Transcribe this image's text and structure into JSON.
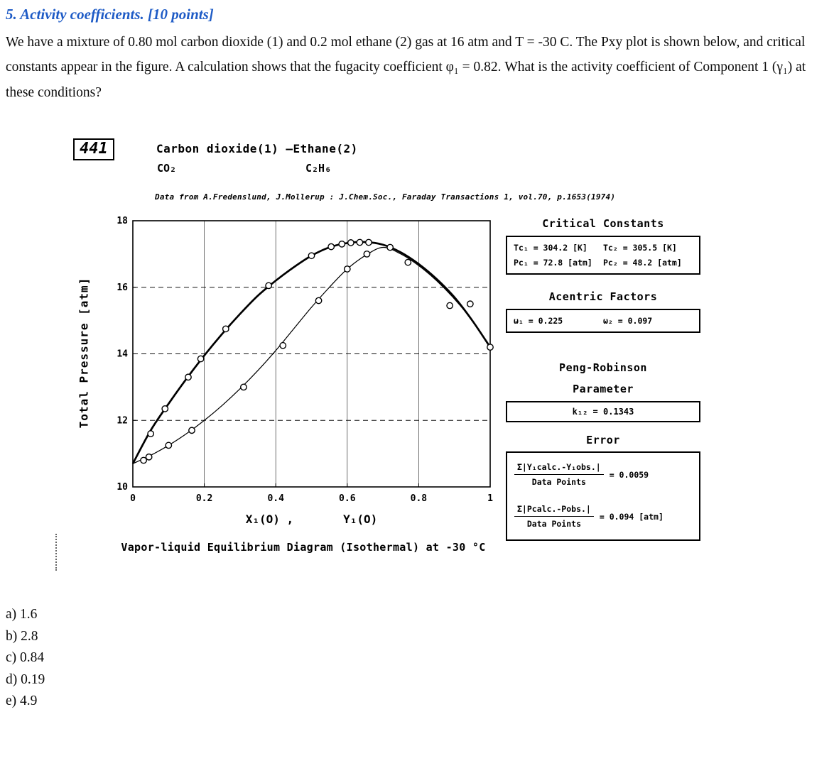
{
  "page": {
    "title": "5. Activity coefficients.  [10 points]",
    "body": "We have a mixture of 0.80 mol carbon dioxide (1) and 0.2 mol ethane (2) gas at 16 atm and T = -30 C.  The Pxy plot is shown below, and critical constants appear in the figure.  A calculation shows that the fugacity coefficient φ₁ = 0.82.  What is the activity coefficient of Component 1 (γ₁) at these conditions?",
    "answers": [
      "a) 1.6",
      "b) 2.8",
      "c) 0.84",
      "d) 0.19",
      "e) 4.9"
    ]
  },
  "figure": {
    "ref_number": "441",
    "title": "Carbon dioxide(1) —Ethane(2)",
    "component1_formula": "CO₂",
    "component2_formula": "C₂H₆",
    "source": "Data from A.Fredenslund, J.Mollerup : J.Chem.Soc., Faraday Transactions 1, vol.70, p.1653(1974)",
    "xaxis_label_x": "X₁(O) ,",
    "xaxis_label_y": "Y₁(O)",
    "panels": {
      "critical_constants": {
        "title": "Critical Constants",
        "rows": [
          [
            "Tc₁ = 304.2 [K]",
            "Tc₂ = 305.5 [K]"
          ],
          [
            "Pc₁ = 72.8 [atm]",
            "Pc₂ = 48.2 [atm]"
          ]
        ]
      },
      "acentric": {
        "title": "Acentric Factors",
        "row": [
          "ω₁ = 0.225",
          "ω₂ = 0.097"
        ]
      },
      "peng_robinson": {
        "title_line1": "Peng-Robinson",
        "title_line2": "Parameter",
        "value": "k₁₂ = 0.1343"
      },
      "error": {
        "title": "Error",
        "entries": [
          {
            "numerator": "Σ|Y₁calc.-Y₁obs.|",
            "denominator": "Data Points",
            "value": "= 0.0059"
          },
          {
            "numerator": "Σ|Pcalc.-Pobs.|",
            "denominator": "Data Points",
            "value": "= 0.094 [atm]"
          }
        ]
      }
    }
  },
  "chart_data": {
    "type": "line",
    "title": "Vapor-liquid Equilibrium Diagram (Isothermal) at -30 °C",
    "xlabel": "X1(O), Y1(O)",
    "ylabel": "Total Pressure [atm]",
    "xlim": [
      0,
      1
    ],
    "ylim": [
      10,
      18
    ],
    "xticks": [
      0,
      0.2,
      0.4,
      0.6,
      0.8,
      1
    ],
    "yticks": [
      10,
      12,
      14,
      16,
      18
    ],
    "dashed_gridlines_y": [
      12,
      14,
      16
    ],
    "grid": true,
    "legend": "none",
    "series": [
      {
        "name": "bubble-point curve P-x1 (Peng-Robinson)",
        "x": [
          0,
          0.05,
          0.1,
          0.15,
          0.2,
          0.25,
          0.3,
          0.35,
          0.4,
          0.45,
          0.5,
          0.55,
          0.6,
          0.65,
          0.7,
          0.75,
          0.8,
          0.85,
          0.9,
          0.95,
          1
        ],
        "y": [
          10.7,
          11.7,
          12.5,
          13.25,
          13.95,
          14.6,
          15.2,
          15.75,
          16.2,
          16.6,
          16.95,
          17.2,
          17.33,
          17.36,
          17.28,
          17.05,
          16.7,
          16.25,
          15.7,
          15.0,
          14.2
        ]
      },
      {
        "name": "dew-point curve P-y1 (Peng-Robinson)",
        "x": [
          0,
          0.05,
          0.1,
          0.15,
          0.2,
          0.25,
          0.3,
          0.35,
          0.4,
          0.45,
          0.5,
          0.55,
          0.6,
          0.65,
          0.7,
          0.75,
          0.8,
          0.85,
          0.9,
          0.95,
          1
        ],
        "y": [
          10.7,
          10.95,
          11.25,
          11.6,
          12.0,
          12.45,
          12.95,
          13.5,
          14.1,
          14.75,
          15.4,
          16.0,
          16.55,
          16.95,
          17.2,
          17.0,
          16.65,
          16.2,
          15.65,
          15.0,
          14.2
        ]
      }
    ],
    "markers": [
      {
        "name": "experimental x1 data (o)",
        "points": [
          [
            0.03,
            10.8
          ],
          [
            0.05,
            11.6
          ],
          [
            0.09,
            12.35
          ],
          [
            0.155,
            13.3
          ],
          [
            0.19,
            13.85
          ],
          [
            0.26,
            14.75
          ],
          [
            0.38,
            16.05
          ],
          [
            0.5,
            16.95
          ],
          [
            0.555,
            17.22
          ],
          [
            0.585,
            17.3
          ],
          [
            0.61,
            17.34
          ],
          [
            0.635,
            17.35
          ],
          [
            0.66,
            17.35
          ],
          [
            0.72,
            17.2
          ],
          [
            1.0,
            14.2
          ]
        ]
      },
      {
        "name": "experimental y1 data (o)",
        "points": [
          [
            0.045,
            10.9
          ],
          [
            0.1,
            11.25
          ],
          [
            0.165,
            11.7
          ],
          [
            0.31,
            13.0
          ],
          [
            0.42,
            14.25
          ],
          [
            0.52,
            15.6
          ],
          [
            0.6,
            16.55
          ],
          [
            0.655,
            17.0
          ],
          [
            0.77,
            16.75
          ],
          [
            0.887,
            15.45
          ],
          [
            0.944,
            15.5
          ]
        ]
      }
    ]
  }
}
